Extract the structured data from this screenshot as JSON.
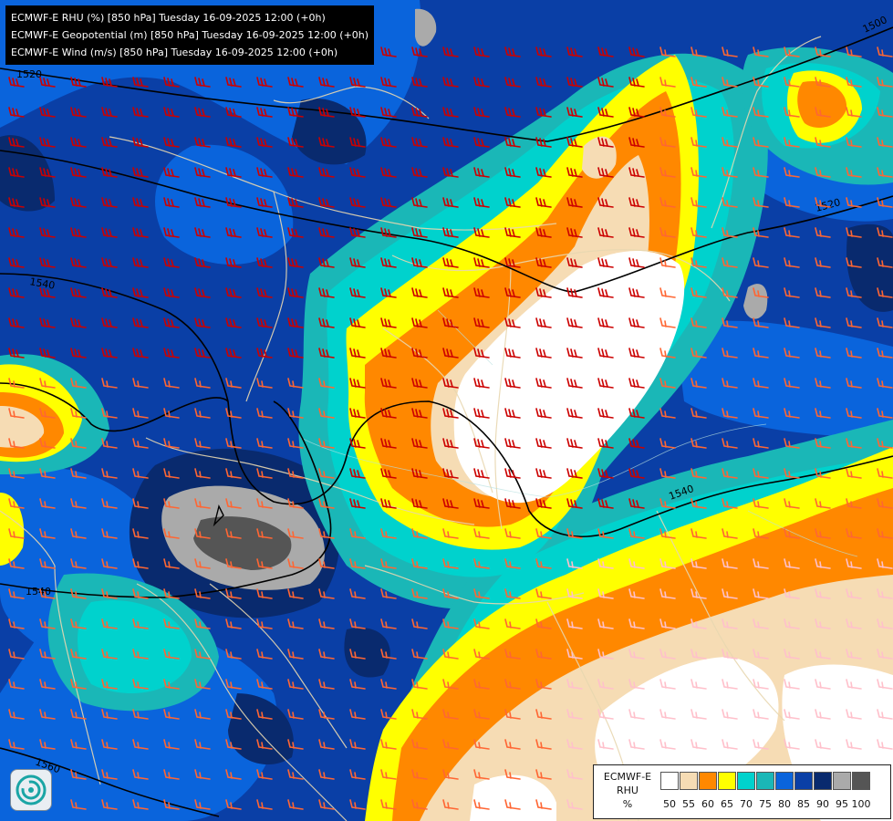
{
  "header": {
    "lines": [
      "ECMWF-E RHU (%) [850 hPa] Tuesday 16-09-2025 12:00 (+0h)",
      "ECMWF-E Geopotential (m) [850 hPa] Tuesday 16-09-2025 12:00 (+0h)",
      "ECMWF-E Wind (m/s) [850 hPa] Tuesday 16-09-2025 12:00 (+0h)"
    ]
  },
  "contour_labels": [
    "1500",
    "1520",
    "1520",
    "1540",
    "1540",
    "1540",
    "1560"
  ],
  "legend": {
    "title_lines": [
      "ECMWF-E",
      "RHU",
      "%"
    ],
    "ticks": [
      "50",
      "55",
      "60",
      "65",
      "70",
      "75",
      "80",
      "85",
      "90",
      "95",
      "100"
    ],
    "bins": [
      {
        "range": "<50",
        "color": "#ffffff"
      },
      {
        "range": "50-55",
        "color": "#f6dcb4"
      },
      {
        "range": "55-60",
        "color": "#ff8800"
      },
      {
        "range": "60-65",
        "color": "#ffff00"
      },
      {
        "range": "65-70",
        "color": "#00d2cd"
      },
      {
        "range": "70-75",
        "color": "#1ab7b7"
      },
      {
        "range": "75-80",
        "color": "#0a64dc"
      },
      {
        "range": "80-85",
        "color": "#0a3fa6"
      },
      {
        "range": "85-90",
        "color": "#092a6e"
      },
      {
        "range": "90-95",
        "color": "#aaaaaa"
      },
      {
        "range": "95-100",
        "color": "#555555"
      }
    ]
  },
  "colors": {
    "wind_strong": "#cc0000",
    "wind_medium": "#ff6633",
    "wind_light": "#ffc0cb",
    "geopotential": "#000000",
    "borders": "#e8d7b0"
  },
  "icons": [
    "ecmwf-logo-icon"
  ]
}
